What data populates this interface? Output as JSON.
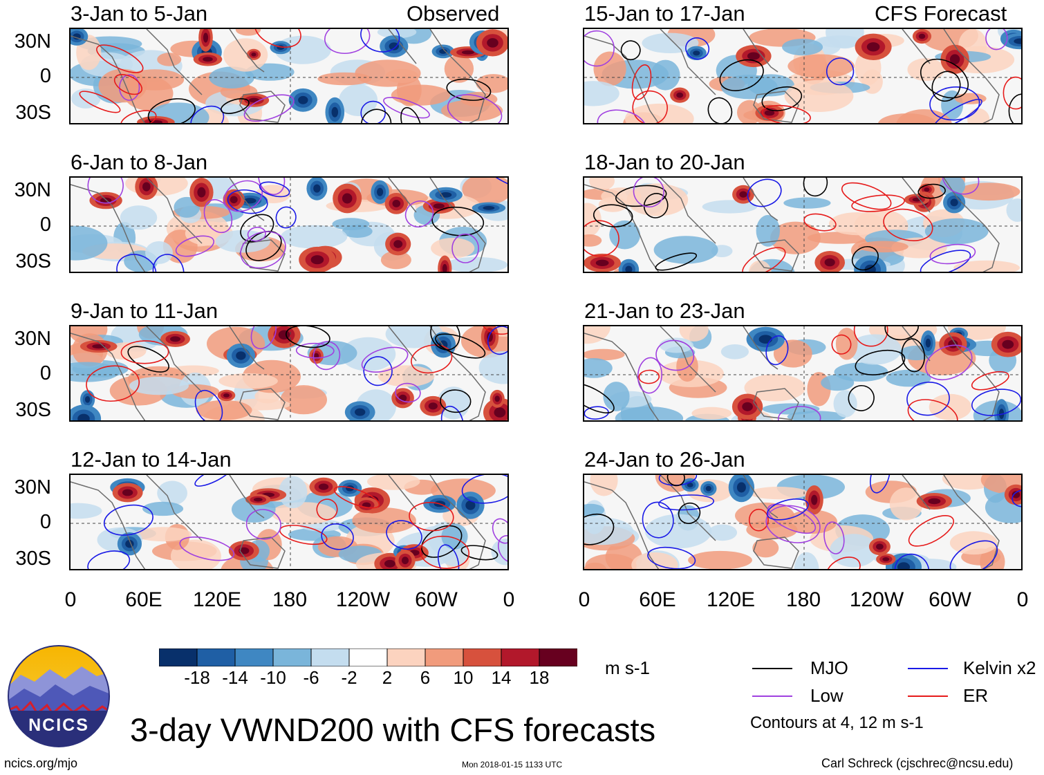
{
  "chart_data": {
    "type": "heatmap",
    "title": "3-day VWND200 with CFS forecasts",
    "variable": "VWND200",
    "units": "m s-1",
    "column_headers": [
      "Observed",
      "CFS Forecast"
    ],
    "xlabels": [
      "0",
      "60E",
      "120E",
      "180",
      "120W",
      "60W",
      "0"
    ],
    "ylabels": [
      "30N",
      "0",
      "30S"
    ],
    "x_range": [
      0,
      360
    ],
    "y_range": [
      -40,
      40
    ],
    "panels": [
      {
        "column": "Observed",
        "title": "3-Jan to 5-Jan",
        "seed": 11
      },
      {
        "column": "Observed",
        "title": "6-Jan to 8-Jan",
        "seed": 23
      },
      {
        "column": "Observed",
        "title": "9-Jan to 11-Jan",
        "seed": 37
      },
      {
        "column": "Observed",
        "title": "12-Jan to 14-Jan",
        "seed": 41
      },
      {
        "column": "CFS Forecast",
        "title": "15-Jan to 17-Jan",
        "seed": 53
      },
      {
        "column": "CFS Forecast",
        "title": "18-Jan to 20-Jan",
        "seed": 67
      },
      {
        "column": "CFS Forecast",
        "title": "21-Jan to 23-Jan",
        "seed": 71
      },
      {
        "column": "CFS Forecast",
        "title": "24-Jan to 26-Jan",
        "seed": 89
      }
    ],
    "colorbar": {
      "levels": [
        "-18",
        "-14",
        "-10",
        "-6",
        "-2",
        "2",
        "6",
        "10",
        "14",
        "18"
      ],
      "colors": [
        "#08306b",
        "#1f5fa5",
        "#3f87c2",
        "#7ab5da",
        "#c4ddef",
        "#ffffff",
        "#fcd3bf",
        "#f19b7c",
        "#d7513d",
        "#b2182b",
        "#67001f"
      ]
    },
    "legend": [
      {
        "label": "MJO",
        "color": "#000000"
      },
      {
        "label": "Kelvin x2",
        "color": "#1a1ae6"
      },
      {
        "label": "Low",
        "color": "#a040e0"
      },
      {
        "label": "ER",
        "color": "#e61a1a"
      }
    ],
    "contour_note": "Contours at 4, 12 m s-1"
  },
  "logo_text": "NCICS",
  "footer": {
    "url": "ncics.org/mjo",
    "timestamp": "Mon 2018-01-15 1133 UTC",
    "author": "Carl Schreck (cjschrec@ncsu.edu)"
  }
}
